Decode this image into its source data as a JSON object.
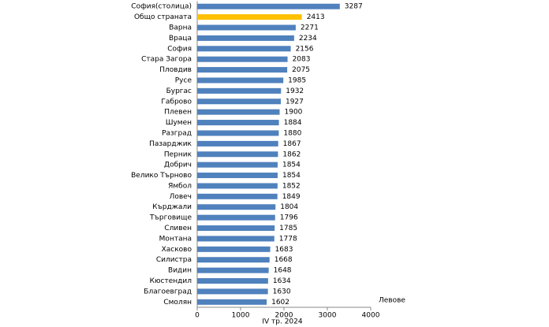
{
  "chart_data": {
    "type": "barh",
    "x_label": "Левове",
    "x_title": "IV  тр. 2024",
    "categories": [
      "София(столица)",
      "Общо страната",
      "Варна",
      "Враца",
      "София",
      "Стара Загора",
      "Пловдив",
      "Русе",
      "Бургас",
      "Габрово",
      "Плевен",
      "Шумен",
      "Разград",
      "Пазарджик",
      "Перник",
      "Добрич",
      "Велико Търново",
      "Ямбол",
      "Ловеч",
      "Кърджали",
      "Търговище",
      "Сливен",
      "Монтана",
      "Хасково",
      "Силистра",
      "Видин",
      "Кюстендил",
      "Благоевград",
      "Смолян"
    ],
    "values": [
      3287,
      2413,
      2271,
      2234,
      2156,
      2083,
      2075,
      1985,
      1932,
      1927,
      1900,
      1884,
      1880,
      1867,
      1862,
      1854,
      1854,
      1852,
      1849,
      1804,
      1796,
      1785,
      1778,
      1683,
      1668,
      1648,
      1634,
      1630,
      1602
    ],
    "colors": [
      "#4f81bd",
      "#ffc000",
      "#4f81bd",
      "#4f81bd",
      "#4f81bd",
      "#4f81bd",
      "#4f81bd",
      "#4f81bd",
      "#4f81bd",
      "#4f81bd",
      "#4f81bd",
      "#4f81bd",
      "#4f81bd",
      "#4f81bd",
      "#4f81bd",
      "#4f81bd",
      "#4f81bd",
      "#4f81bd",
      "#4f81bd",
      "#4f81bd",
      "#4f81bd",
      "#4f81bd",
      "#4f81bd",
      "#4f81bd",
      "#4f81bd",
      "#4f81bd",
      "#4f81bd",
      "#4f81bd",
      "#4f81bd"
    ],
    "xlim": [
      0,
      4000
    ],
    "xticks": [
      0,
      1000,
      2000,
      3000,
      4000
    ],
    "grid": false
  }
}
